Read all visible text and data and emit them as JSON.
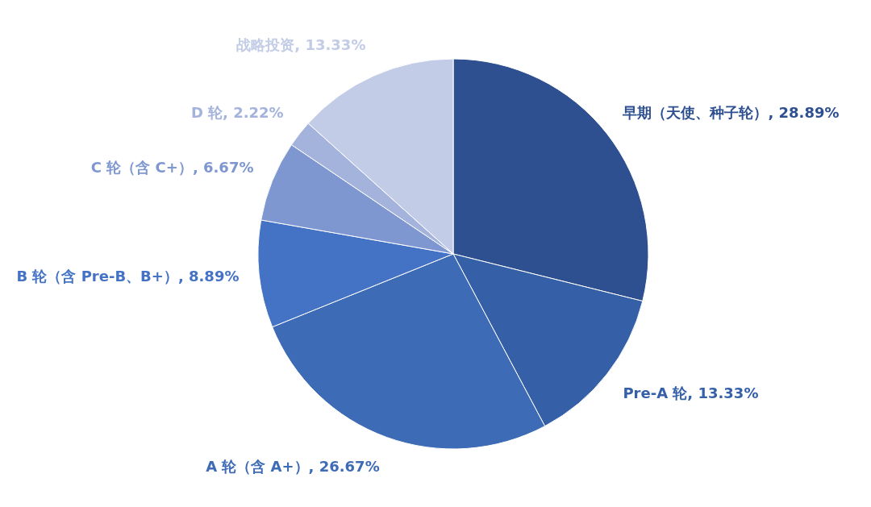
{
  "chart_data": {
    "type": "pie",
    "categories": [
      "早期（天使、种子轮）",
      "Pre-A 轮",
      "A 轮（含 A+）",
      "B 轮（含 Pre-B、B+）",
      "C 轮（含 C+）",
      "D 轮",
      "战略投资"
    ],
    "values": [
      28.89,
      13.33,
      26.67,
      8.89,
      6.67,
      2.22,
      13.33
    ],
    "value_labels": [
      "28.89%",
      "13.33%",
      "26.67%",
      "8.89%",
      "6.67%",
      "2.22%",
      "13.33%"
    ],
    "colors": [
      "#2f5090",
      "#3560a8",
      "#3e6bb5",
      "#4472c4",
      "#7f97d0",
      "#a4b3dc",
      "#c3cce6"
    ]
  }
}
